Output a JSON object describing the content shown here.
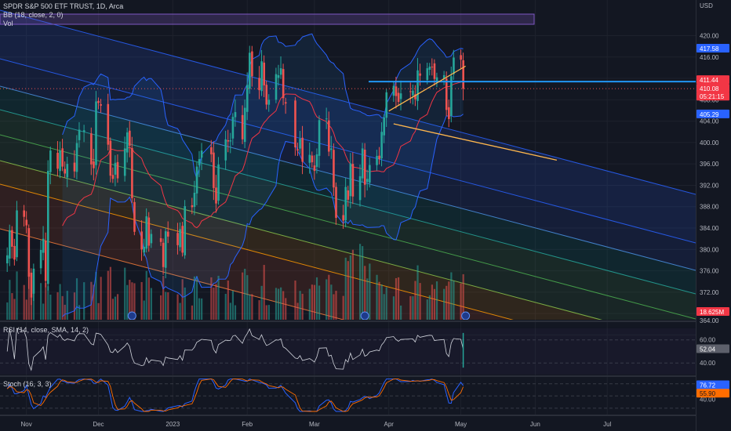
{
  "legend": {
    "symbol": "SPDR S&P 500 ETF TRUST, 1D, Arca",
    "bb": "BB (18, close, 2, 0)",
    "vol": "Vol",
    "rsi": "RSI (14, close, SMA, 14, 2)",
    "stoch": "Stoch (16, 3, 3)"
  },
  "colors": {
    "background": "#131722",
    "up": "#26a69a",
    "down": "#ef5350",
    "bb_band": "#2962ff",
    "bb_basis": "#f23645",
    "trend_line": "#ffb74d",
    "resistance": "#2196f3",
    "box": "#7e57c2"
  },
  "chart_data": [
    {
      "type": "candlestick",
      "title": "SPDR S&P 500 ETF TRUST, 1D, Arca",
      "currency": "USD",
      "y_ticks": [
        "420.00",
        "416.00",
        "412.00",
        "408.00",
        "404.00",
        "400.00",
        "396.00",
        "392.00",
        "388.00",
        "384.00",
        "380.00",
        "376.00",
        "372.00",
        "368.00",
        "364.00"
      ],
      "x_ticks": [
        "Nov",
        "Dec",
        "2023",
        "Feb",
        "Mar",
        "Apr",
        "May",
        "Jun",
        "Jul"
      ],
      "ylim": [
        363,
        423
      ],
      "price_tags": [
        {
          "value": "417.58",
          "kind": "bb_upper"
        },
        {
          "value": "411.44",
          "kind": "bb_basis"
        },
        {
          "value": "410.08",
          "kind": "last_price"
        },
        {
          "value": "05:21:15",
          "kind": "countdown"
        },
        {
          "value": "405.29",
          "kind": "bb_lower"
        },
        {
          "value": "18.625M",
          "kind": "volume"
        }
      ],
      "resistance_level": 411.4,
      "trend_lines": [
        {
          "from": [
            "2023-04-01",
            405.9
          ],
          "to": [
            "2023-05-03",
            414.3
          ]
        },
        {
          "from": [
            "2023-04-03",
            403.5
          ],
          "to": [
            "2023-06-10",
            396.7
          ]
        }
      ],
      "closes": [
        [
          "2022-10-24",
          378.9
        ],
        [
          "2022-10-25",
          383.6
        ],
        [
          "2022-10-26",
          380.5
        ],
        [
          "2022-10-27",
          378.1
        ],
        [
          "2022-10-28",
          387.3
        ],
        [
          "2022-10-31",
          386.1
        ],
        [
          "2022-11-01",
          384.5
        ],
        [
          "2022-11-02",
          374.9
        ],
        [
          "2022-11-03",
          371.0
        ],
        [
          "2022-11-04",
          376.4
        ],
        [
          "2022-11-07",
          379.9
        ],
        [
          "2022-11-08",
          382.0
        ],
        [
          "2022-11-09",
          374.1
        ],
        [
          "2022-11-10",
          394.7
        ],
        [
          "2022-11-11",
          398.5
        ],
        [
          "2022-11-14",
          395.1
        ],
        [
          "2022-11-15",
          398.5
        ],
        [
          "2022-11-16",
          395.5
        ],
        [
          "2022-11-17",
          394.2
        ],
        [
          "2022-11-18",
          396.0
        ],
        [
          "2022-11-21",
          394.6
        ],
        [
          "2022-11-22",
          399.9
        ],
        [
          "2022-11-23",
          402.4
        ],
        [
          "2022-11-25",
          402.3
        ],
        [
          "2022-11-28",
          395.9
        ],
        [
          "2022-11-29",
          395.2
        ],
        [
          "2022-11-30",
          407.7
        ],
        [
          "2022-12-01",
          407.4
        ],
        [
          "2022-12-02",
          406.9
        ],
        [
          "2022-12-05",
          399.6
        ],
        [
          "2022-12-06",
          393.8
        ],
        [
          "2022-12-07",
          393.2
        ],
        [
          "2022-12-08",
          396.2
        ],
        [
          "2022-12-09",
          393.3
        ],
        [
          "2022-12-12",
          398.9
        ],
        [
          "2022-12-13",
          401.9
        ],
        [
          "2022-12-14",
          399.4
        ],
        [
          "2022-12-15",
          389.6
        ],
        [
          "2022-12-16",
          383.3
        ],
        [
          "2022-12-19",
          380.0
        ],
        [
          "2022-12-20",
          380.5
        ],
        [
          "2022-12-21",
          386.2
        ],
        [
          "2022-12-22",
          380.7
        ],
        [
          "2022-12-23",
          382.9
        ],
        [
          "2022-12-27",
          381.4
        ],
        [
          "2022-12-28",
          376.7
        ],
        [
          "2022-12-29",
          383.4
        ],
        [
          "2022-12-30",
          382.4
        ],
        [
          "2023-01-03",
          380.8
        ],
        [
          "2023-01-04",
          383.8
        ],
        [
          "2023-01-05",
          379.4
        ],
        [
          "2023-01-06",
          388.1
        ],
        [
          "2023-01-09",
          387.9
        ],
        [
          "2023-01-10",
          390.6
        ],
        [
          "2023-01-11",
          395.5
        ],
        [
          "2023-01-12",
          396.9
        ],
        [
          "2023-01-13",
          398.5
        ],
        [
          "2023-01-17",
          397.8
        ],
        [
          "2023-01-18",
          391.5
        ],
        [
          "2023-01-19",
          388.6
        ],
        [
          "2023-01-20",
          395.9
        ],
        [
          "2023-01-23",
          400.6
        ],
        [
          "2023-01-24",
          400.2
        ],
        [
          "2023-01-25",
          400.4
        ],
        [
          "2023-01-26",
          404.8
        ],
        [
          "2023-01-27",
          405.7
        ],
        [
          "2023-01-30",
          400.6
        ],
        [
          "2023-01-31",
          406.5
        ],
        [
          "2023-02-01",
          410.8
        ],
        [
          "2023-02-02",
          416.8
        ],
        [
          "2023-02-03",
          412.4
        ],
        [
          "2023-02-06",
          409.8
        ],
        [
          "2023-02-07",
          415.2
        ],
        [
          "2023-02-08",
          410.7
        ],
        [
          "2023-02-09",
          407.1
        ],
        [
          "2023-02-10",
          408.0
        ],
        [
          "2023-02-13",
          412.8
        ],
        [
          "2023-02-14",
          412.6
        ],
        [
          "2023-02-15",
          413.9
        ],
        [
          "2023-02-16",
          408.3
        ],
        [
          "2023-02-17",
          407.3
        ],
        [
          "2023-02-21",
          399.1
        ],
        [
          "2023-02-22",
          398.5
        ],
        [
          "2023-02-23",
          400.7
        ],
        [
          "2023-02-24",
          396.4
        ],
        [
          "2023-02-27",
          397.7
        ],
        [
          "2023-02-28",
          396.3
        ],
        [
          "2023-03-01",
          394.7
        ],
        [
          "2023-03-02",
          397.8
        ],
        [
          "2023-03-03",
          404.2
        ],
        [
          "2023-03-06",
          404.5
        ],
        [
          "2023-03-07",
          398.3
        ],
        [
          "2023-03-08",
          398.9
        ],
        [
          "2023-03-09",
          391.6
        ],
        [
          "2023-03-10",
          385.9
        ],
        [
          "2023-03-13",
          385.4
        ],
        [
          "2023-03-14",
          391.7
        ],
        [
          "2023-03-15",
          389.3
        ],
        [
          "2023-03-16",
          396.1
        ],
        [
          "2023-03-17",
          389.9
        ],
        [
          "2023-03-20",
          393.7
        ],
        [
          "2023-03-21",
          398.9
        ],
        [
          "2023-03-22",
          392.1
        ],
        [
          "2023-03-23",
          393.2
        ],
        [
          "2023-03-24",
          395.8
        ],
        [
          "2023-03-27",
          397.5
        ],
        [
          "2023-03-28",
          396.9
        ],
        [
          "2023-03-29",
          402.0
        ],
        [
          "2023-03-30",
          404.7
        ],
        [
          "2023-03-31",
          409.4
        ],
        [
          "2023-04-03",
          410.6
        ],
        [
          "2023-04-04",
          408.7
        ],
        [
          "2023-04-05",
          407.6
        ],
        [
          "2023-04-06",
          409.2
        ],
        [
          "2023-04-10",
          409.6
        ],
        [
          "2023-04-11",
          409.7
        ],
        [
          "2023-04-12",
          408.1
        ],
        [
          "2023-04-13",
          413.5
        ],
        [
          "2023-04-14",
          412.5
        ],
        [
          "2023-04-17",
          413.9
        ],
        [
          "2023-04-18",
          414.2
        ],
        [
          "2023-04-19",
          414.1
        ],
        [
          "2023-04-20",
          411.9
        ],
        [
          "2023-04-21",
          412.2
        ],
        [
          "2023-04-24",
          412.6
        ],
        [
          "2023-04-25",
          406.1
        ],
        [
          "2023-04-26",
          404.4
        ],
        [
          "2023-04-27",
          412.4
        ],
        [
          "2023-04-28",
          415.9
        ],
        [
          "2023-05-01",
          415.5
        ],
        [
          "2023-05-02",
          410.08
        ]
      ]
    },
    {
      "type": "line",
      "title": "RSI (14, close, SMA, 14, 2)",
      "y_ticks": [
        "60.00",
        "40.00"
      ],
      "value_tags": [
        "52.04"
      ],
      "ylim": [
        30,
        72
      ]
    },
    {
      "type": "line",
      "title": "Stoch (16, 3, 3)",
      "y_ticks": [
        "40.00"
      ],
      "value_tags": [
        "76.72",
        "55.90"
      ],
      "ylim": [
        10,
        95
      ]
    }
  ]
}
